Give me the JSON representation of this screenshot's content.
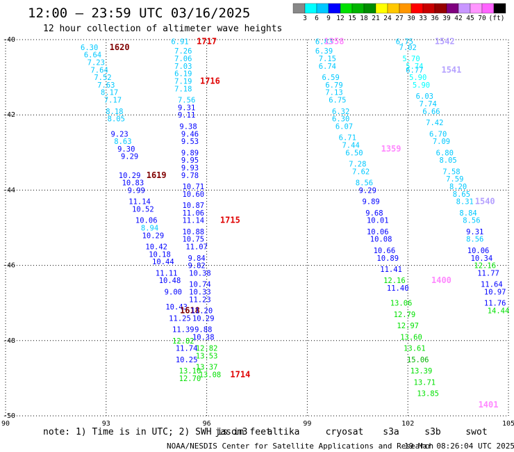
{
  "title": "12:00 – 23:59 UTC 03/16/2025",
  "subtitle": "12 hour collection of altimeter wave heights",
  "note": "note:  1) Time is in UTC; 2) SWH is in feet",
  "footer_left": "NOAA/NESDIS Center for Satellite Applications and Research",
  "footer_right": "19 Mar 08:26:04 UTC 2025",
  "colorbar": {
    "unit": "(ft)",
    "colors": [
      "#888888",
      "#00ffff",
      "#00c8ff",
      "#0000ff",
      "#00e000",
      "#00b400",
      "#008c00",
      "#ffff00",
      "#ffc800",
      "#ff9600",
      "#ff0000",
      "#c80000",
      "#960000",
      "#7f007f",
      "#c896ff",
      "#ff96ff",
      "#ff64ff",
      "#000000"
    ],
    "labels": [
      "3",
      "6",
      "9",
      "12",
      "15",
      "18",
      "21",
      "24",
      "27",
      "30",
      "33",
      "36",
      "39",
      "42",
      "45",
      "70"
    ]
  },
  "satellites": [
    {
      "name": "jason3",
      "color": "#008000"
    },
    {
      "name": "altika",
      "color": "#ff9900"
    },
    {
      "name": "cryosat",
      "color": "#ff0000"
    },
    {
      "name": "s3a",
      "color": "#990000"
    },
    {
      "name": "s3b",
      "color": "#c8b4ff"
    },
    {
      "name": "swot",
      "color": "#ffa0ff"
    }
  ],
  "chart_data": {
    "type": "scatter",
    "title": "12:00 – 23:59 UTC 03/16/2025",
    "subtitle": "12 hour collection of altimeter wave heights",
    "xlim": [
      90,
      105
    ],
    "ylim": [
      -50,
      -40
    ],
    "xticks": [
      "90",
      "93",
      "96",
      "99",
      "102",
      "105"
    ],
    "yticks": [
      "-40",
      "-42",
      "-44",
      "-46",
      "-48",
      "-50"
    ],
    "grid": true,
    "tracks": [
      {
        "name": "s3a",
        "label_color": "#800000",
        "time_labels": [
          {
            "text": "1620",
            "x": 93.4,
            "y": -40.2
          },
          {
            "text": "1619",
            "x": 94.5,
            "y": -43.6
          },
          {
            "text": "1618",
            "x": 95.5,
            "y": -47.2
          }
        ],
        "points": [
          {
            "x": 92.5,
            "y": -40.2,
            "v": "6.30"
          },
          {
            "x": 92.6,
            "y": -40.4,
            "v": "6.64"
          },
          {
            "x": 92.7,
            "y": -40.6,
            "v": "7.23"
          },
          {
            "x": 92.8,
            "y": -40.8,
            "v": "7.64"
          },
          {
            "x": 92.9,
            "y": -41.0,
            "v": "7.52"
          },
          {
            "x": 93.0,
            "y": -41.2,
            "v": "7.63"
          },
          {
            "x": 93.1,
            "y": -41.4,
            "v": "8.17"
          },
          {
            "x": 93.2,
            "y": -41.6,
            "v": "7.17"
          },
          {
            "x": 93.25,
            "y": -41.9,
            "v": "8.18"
          },
          {
            "x": 93.3,
            "y": -42.1,
            "v": "8.05"
          },
          {
            "x": 93.4,
            "y": -42.5,
            "v": "9.23"
          },
          {
            "x": 93.5,
            "y": -42.7,
            "v": "8.63"
          },
          {
            "x": 93.6,
            "y": -42.9,
            "v": "9.30"
          },
          {
            "x": 93.7,
            "y": -43.1,
            "v": "9.29"
          },
          {
            "x": 93.7,
            "y": -43.6,
            "v": "10.29"
          },
          {
            "x": 93.8,
            "y": -43.8,
            "v": "10.83"
          },
          {
            "x": 93.9,
            "y": -44.0,
            "v": "9.99"
          },
          {
            "x": 94.0,
            "y": -44.3,
            "v": "11.14"
          },
          {
            "x": 94.1,
            "y": -44.5,
            "v": "10.52"
          },
          {
            "x": 94.2,
            "y": -44.8,
            "v": "10.06"
          },
          {
            "x": 94.3,
            "y": -45.0,
            "v": "8.94"
          },
          {
            "x": 94.4,
            "y": -45.2,
            "v": "10.29"
          },
          {
            "x": 94.5,
            "y": -45.5,
            "v": "10.42"
          },
          {
            "x": 94.6,
            "y": -45.7,
            "v": "10.18"
          },
          {
            "x": 94.7,
            "y": -45.9,
            "v": "10.44"
          },
          {
            "x": 94.8,
            "y": -46.2,
            "v": "11.11"
          },
          {
            "x": 94.9,
            "y": -46.4,
            "v": "10.48"
          },
          {
            "x": 95.0,
            "y": -46.7,
            "v": "9.00"
          },
          {
            "x": 95.1,
            "y": -47.1,
            "v": "10.43"
          },
          {
            "x": 95.2,
            "y": -47.4,
            "v": "11.25"
          },
          {
            "x": 95.3,
            "y": -47.7,
            "v": "11.39"
          },
          {
            "x": 95.3,
            "y": -48.0,
            "v": "12.82"
          },
          {
            "x": 95.4,
            "y": -48.2,
            "v": "11.74"
          },
          {
            "x": 95.4,
            "y": -48.5,
            "v": "10.25"
          },
          {
            "x": 95.5,
            "y": -48.8,
            "v": "13.10"
          },
          {
            "x": 95.5,
            "y": -49.0,
            "v": "12.70"
          }
        ]
      },
      {
        "name": "cryosat",
        "label_color": "#e00000",
        "time_labels": [
          {
            "text": "1717",
            "x": 96.0,
            "y": -40.05
          },
          {
            "text": "1716",
            "x": 96.1,
            "y": -41.1
          },
          {
            "text": "1715",
            "x": 96.7,
            "y": -44.8
          },
          {
            "text": "1714",
            "x": 97.0,
            "y": -48.9
          }
        ],
        "points": [
          {
            "x": 95.2,
            "y": -40.05,
            "v": "6.91"
          },
          {
            "x": 95.3,
            "y": -40.3,
            "v": "7.26"
          },
          {
            "x": 95.3,
            "y": -40.5,
            "v": "7.06"
          },
          {
            "x": 95.3,
            "y": -40.7,
            "v": "7.03"
          },
          {
            "x": 95.3,
            "y": -40.9,
            "v": "6.19"
          },
          {
            "x": 95.3,
            "y": -41.1,
            "v": "7.19"
          },
          {
            "x": 95.3,
            "y": -41.3,
            "v": "7.18"
          },
          {
            "x": 95.4,
            "y": -41.6,
            "v": "7.56"
          },
          {
            "x": 95.4,
            "y": -41.8,
            "v": "9.31"
          },
          {
            "x": 95.4,
            "y": -42.0,
            "v": "9.11"
          },
          {
            "x": 95.45,
            "y": -42.3,
            "v": "9.38"
          },
          {
            "x": 95.5,
            "y": -42.5,
            "v": "9.46"
          },
          {
            "x": 95.5,
            "y": -42.7,
            "v": "9.53"
          },
          {
            "x": 95.5,
            "y": -43.0,
            "v": "9.89"
          },
          {
            "x": 95.5,
            "y": -43.2,
            "v": "9.95"
          },
          {
            "x": 95.5,
            "y": -43.4,
            "v": "9.93"
          },
          {
            "x": 95.5,
            "y": -43.6,
            "v": "9.78"
          },
          {
            "x": 95.6,
            "y": -43.9,
            "v": "10.71"
          },
          {
            "x": 95.6,
            "y": -44.1,
            "v": "10.60"
          },
          {
            "x": 95.6,
            "y": -44.4,
            "v": "10.87"
          },
          {
            "x": 95.6,
            "y": -44.6,
            "v": "11.06"
          },
          {
            "x": 95.6,
            "y": -44.8,
            "v": "11.14"
          },
          {
            "x": 95.6,
            "y": -45.1,
            "v": "10.88"
          },
          {
            "x": 95.6,
            "y": -45.3,
            "v": "10.75"
          },
          {
            "x": 95.7,
            "y": -45.5,
            "v": "11.07"
          },
          {
            "x": 95.7,
            "y": -45.8,
            "v": "9.84"
          },
          {
            "x": 95.7,
            "y": -46.0,
            "v": "9.82"
          },
          {
            "x": 95.8,
            "y": -46.2,
            "v": "10.38"
          },
          {
            "x": 95.8,
            "y": -46.5,
            "v": "10.74"
          },
          {
            "x": 95.8,
            "y": -46.7,
            "v": "10.33"
          },
          {
            "x": 95.8,
            "y": -46.9,
            "v": "11.23"
          },
          {
            "x": 95.85,
            "y": -47.2,
            "v": "11.20"
          },
          {
            "x": 95.9,
            "y": -47.4,
            "v": "10.29"
          },
          {
            "x": 95.9,
            "y": -47.7,
            "v": "9.88"
          },
          {
            "x": 95.9,
            "y": -47.9,
            "v": "10.38"
          },
          {
            "x": 96.0,
            "y": -48.2,
            "v": "12.82"
          },
          {
            "x": 96.0,
            "y": -48.4,
            "v": "13.53"
          },
          {
            "x": 96.0,
            "y": -48.7,
            "v": "13.37"
          },
          {
            "x": 96.1,
            "y": -48.9,
            "v": "13.08"
          }
        ]
      },
      {
        "name": "swot",
        "label_color": "#ff88ff",
        "time_labels": [
          {
            "text": "1358",
            "x": 99.8,
            "y": -40.05
          },
          {
            "text": "1359",
            "x": 101.5,
            "y": -42.9
          },
          {
            "text": "1400",
            "x": 103.0,
            "y": -46.4
          },
          {
            "text": "1401",
            "x": 104.4,
            "y": -49.7
          }
        ],
        "points": [
          {
            "x": 99.5,
            "y": -40.05,
            "v": "6.83"
          },
          {
            "x": 99.5,
            "y": -40.3,
            "v": "6.39"
          },
          {
            "x": 99.6,
            "y": -40.5,
            "v": "7.15"
          },
          {
            "x": 99.6,
            "y": -40.7,
            "v": "6.74"
          },
          {
            "x": 99.7,
            "y": -41.0,
            "v": "6.59"
          },
          {
            "x": 99.8,
            "y": -41.2,
            "v": "6.79"
          },
          {
            "x": 99.8,
            "y": -41.4,
            "v": "7.13"
          },
          {
            "x": 99.9,
            "y": -41.6,
            "v": "6.75"
          },
          {
            "x": 100.0,
            "y": -41.9,
            "v": "6.32"
          },
          {
            "x": 100.0,
            "y": -42.1,
            "v": "6.30"
          },
          {
            "x": 100.1,
            "y": -42.3,
            "v": "6.07"
          },
          {
            "x": 100.2,
            "y": -42.6,
            "v": "6.71"
          },
          {
            "x": 100.3,
            "y": -42.8,
            "v": "7.44"
          },
          {
            "x": 100.4,
            "y": -43.0,
            "v": "6.50"
          },
          {
            "x": 100.5,
            "y": -43.3,
            "v": "7.28"
          },
          {
            "x": 100.6,
            "y": -43.5,
            "v": "7.62"
          },
          {
            "x": 100.7,
            "y": -43.8,
            "v": "8.56"
          },
          {
            "x": 100.8,
            "y": -44.0,
            "v": "9.29"
          },
          {
            "x": 100.9,
            "y": -44.3,
            "v": "9.89"
          },
          {
            "x": 101.0,
            "y": -44.6,
            "v": "9.68"
          },
          {
            "x": 101.1,
            "y": -44.8,
            "v": "10.01"
          },
          {
            "x": 101.1,
            "y": -45.1,
            "v": "10.06"
          },
          {
            "x": 101.2,
            "y": -45.3,
            "v": "10.08"
          },
          {
            "x": 101.3,
            "y": -45.6,
            "v": "10.66"
          },
          {
            "x": 101.4,
            "y": -45.8,
            "v": "10.89"
          },
          {
            "x": 101.5,
            "y": -46.1,
            "v": "11.41"
          },
          {
            "x": 101.6,
            "y": -46.4,
            "v": "12.16"
          },
          {
            "x": 101.7,
            "y": -46.6,
            "v": "11.40"
          },
          {
            "x": 101.8,
            "y": -47.0,
            "v": "13.06"
          },
          {
            "x": 101.9,
            "y": -47.3,
            "v": "12.79"
          },
          {
            "x": 102.0,
            "y": -47.6,
            "v": "12.97"
          },
          {
            "x": 102.1,
            "y": -47.9,
            "v": "13.60"
          },
          {
            "x": 102.2,
            "y": -48.2,
            "v": "13.61"
          },
          {
            "x": 102.3,
            "y": -48.5,
            "v": "15.06"
          },
          {
            "x": 102.4,
            "y": -48.8,
            "v": "13.39"
          },
          {
            "x": 102.5,
            "y": -49.1,
            "v": "13.71"
          },
          {
            "x": 102.6,
            "y": -49.4,
            "v": "13.85"
          }
        ]
      },
      {
        "name": "s3b",
        "label_color": "#b4a0ff",
        "time_labels": [
          {
            "text": "1542",
            "x": 103.1,
            "y": -40.05
          },
          {
            "text": "1541",
            "x": 103.3,
            "y": -40.8
          },
          {
            "text": "1540",
            "x": 104.3,
            "y": -44.3
          }
        ],
        "points": [
          {
            "x": 101.9,
            "y": -40.05,
            "v": "6.75"
          },
          {
            "x": 102.0,
            "y": -40.2,
            "v": "7.02"
          },
          {
            "x": 102.1,
            "y": -40.5,
            "v": "5.70"
          },
          {
            "x": 102.2,
            "y": -40.7,
            "v": "5.74"
          },
          {
            "x": 102.2,
            "y": -40.8,
            "v": "6.77"
          },
          {
            "x": 102.3,
            "y": -41.0,
            "v": "5.90"
          },
          {
            "x": 102.4,
            "y": -41.2,
            "v": "5.90"
          },
          {
            "x": 102.5,
            "y": -41.5,
            "v": "6.03"
          },
          {
            "x": 102.6,
            "y": -41.7,
            "v": "7.74"
          },
          {
            "x": 102.7,
            "y": -41.9,
            "v": "6.66"
          },
          {
            "x": 102.8,
            "y": -42.2,
            "v": "7.42"
          },
          {
            "x": 102.9,
            "y": -42.5,
            "v": "6.70"
          },
          {
            "x": 103.0,
            "y": -42.7,
            "v": "7.09"
          },
          {
            "x": 103.1,
            "y": -43.0,
            "v": "6.80"
          },
          {
            "x": 103.2,
            "y": -43.2,
            "v": "8.05"
          },
          {
            "x": 103.3,
            "y": -43.5,
            "v": "7.58"
          },
          {
            "x": 103.4,
            "y": -43.7,
            "v": "7.59"
          },
          {
            "x": 103.5,
            "y": -43.9,
            "v": "8.20"
          },
          {
            "x": 103.6,
            "y": -44.1,
            "v": "8.65"
          },
          {
            "x": 103.7,
            "y": -44.3,
            "v": "8.31"
          },
          {
            "x": 103.8,
            "y": -44.6,
            "v": "8.84"
          },
          {
            "x": 103.9,
            "y": -44.8,
            "v": "8.56"
          },
          {
            "x": 104.0,
            "y": -45.1,
            "v": "9.31"
          },
          {
            "x": 104.0,
            "y": -45.3,
            "v": "8.56"
          },
          {
            "x": 104.1,
            "y": -45.6,
            "v": "10.06"
          },
          {
            "x": 104.2,
            "y": -45.8,
            "v": "10.34"
          },
          {
            "x": 104.3,
            "y": -46.0,
            "v": "12.16"
          },
          {
            "x": 104.4,
            "y": -46.2,
            "v": "11.77"
          },
          {
            "x": 104.5,
            "y": -46.5,
            "v": "11.64"
          },
          {
            "x": 104.6,
            "y": -46.7,
            "v": "10.97"
          },
          {
            "x": 104.6,
            "y": -47.0,
            "v": "11.76"
          },
          {
            "x": 104.7,
            "y": -47.2,
            "v": "14.44"
          }
        ]
      }
    ]
  }
}
